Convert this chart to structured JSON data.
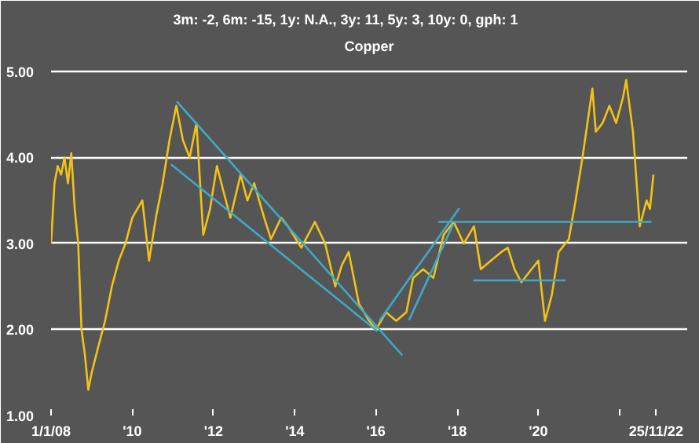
{
  "chart_data": {
    "type": "line",
    "title": "Copper",
    "subtitle": "3m: -2,   6m: -15,   1y: N.A.,   3y: 11,   5y: 3,   10y: 0,   gph: 1",
    "xlim": [
      "2008-01-01",
      "2023-09-01"
    ],
    "ylim": [
      1.0,
      5.2
    ],
    "xticks": [
      {
        "value": "2008-01-01",
        "label": "1/1/08"
      },
      {
        "value": "2010-01-01",
        "label": "'10"
      },
      {
        "value": "2012-01-01",
        "label": "'12"
      },
      {
        "value": "2014-01-01",
        "label": "'14"
      },
      {
        "value": "2016-01-01",
        "label": "'16"
      },
      {
        "value": "2018-01-01",
        "label": "'18"
      },
      {
        "value": "2020-01-01",
        "label": "'20"
      },
      {
        "value": "2022-01-01",
        "label": null
      },
      {
        "value": "2022-11-25",
        "label": "25/11/22"
      }
    ],
    "yticks": [
      {
        "value": 1,
        "label": "1.00"
      },
      {
        "value": 2,
        "label": "2.00"
      },
      {
        "value": 3,
        "label": "3.00"
      },
      {
        "value": 4,
        "label": "4.00"
      },
      {
        "value": 5,
        "label": "5.00"
      }
    ],
    "grid": "y",
    "series": [
      {
        "color": "#f2c316",
        "x": [
          "2008-01",
          "2008-02",
          "2008-03",
          "2008-04",
          "2008-05",
          "2008-06",
          "2008-07",
          "2008-08",
          "2008-09",
          "2008-10",
          "2008-11",
          "2008-12",
          "2009-01",
          "2009-03",
          "2009-05",
          "2009-07",
          "2009-09",
          "2009-11",
          "2010-01",
          "2010-04",
          "2010-06",
          "2010-08",
          "2010-10",
          "2010-12",
          "2011-02",
          "2011-04",
          "2011-06",
          "2011-08",
          "2011-10",
          "2011-12",
          "2012-02",
          "2012-04",
          "2012-06",
          "2012-09",
          "2012-11",
          "2013-01",
          "2013-04",
          "2013-06",
          "2013-09",
          "2013-11",
          "2014-03",
          "2014-05",
          "2014-07",
          "2014-10",
          "2015-01",
          "2015-03",
          "2015-05",
          "2015-08",
          "2015-11",
          "2016-01",
          "2016-04",
          "2016-07",
          "2016-10",
          "2016-12",
          "2017-03",
          "2017-06",
          "2017-09",
          "2017-12",
          "2018-03",
          "2018-06",
          "2018-08",
          "2018-11",
          "2019-02",
          "2019-04",
          "2019-06",
          "2019-08",
          "2019-11",
          "2020-01",
          "2020-03",
          "2020-05",
          "2020-07",
          "2020-10",
          "2020-12",
          "2021-02",
          "2021-05",
          "2021-06",
          "2021-08",
          "2021-10",
          "2021-12",
          "2022-02",
          "2022-03",
          "2022-05",
          "2022-07",
          "2022-09",
          "2022-10",
          "2022-11"
        ],
        "values": [
          3.0,
          3.7,
          3.9,
          3.8,
          4.0,
          3.7,
          4.05,
          3.4,
          3.0,
          2.0,
          1.7,
          1.3,
          1.5,
          1.8,
          2.1,
          2.5,
          2.8,
          3.0,
          3.3,
          3.5,
          2.8,
          3.3,
          3.7,
          4.2,
          4.6,
          4.2,
          4.0,
          4.4,
          3.1,
          3.4,
          3.9,
          3.6,
          3.3,
          3.8,
          3.5,
          3.7,
          3.3,
          3.05,
          3.3,
          3.2,
          2.95,
          3.1,
          3.25,
          3.0,
          2.5,
          2.75,
          2.9,
          2.3,
          2.1,
          2.0,
          2.2,
          2.1,
          2.2,
          2.6,
          2.7,
          2.6,
          3.1,
          3.25,
          3.0,
          3.2,
          2.7,
          2.8,
          2.9,
          2.95,
          2.7,
          2.55,
          2.7,
          2.8,
          2.1,
          2.4,
          2.9,
          3.05,
          3.5,
          4.0,
          4.8,
          4.3,
          4.4,
          4.6,
          4.4,
          4.7,
          4.9,
          4.3,
          3.2,
          3.5,
          3.4,
          3.8
        ]
      },
      {
        "color": "#3fa9c9",
        "x": [
          "2011-02-05",
          "2016-08-25"
        ],
        "values": [
          4.65,
          1.7
        ]
      },
      {
        "color": "#3fa9c9",
        "x": [
          "2010-12-15",
          "2016-01-15"
        ],
        "values": [
          3.92,
          1.98
        ]
      },
      {
        "color": "#3fa9c9",
        "x": [
          "2016-02-01",
          "2018-01-20"
        ],
        "values": [
          2.1,
          3.41
        ]
      },
      {
        "color": "#3fa9c9",
        "x": [
          "2016-10-25",
          "2017-11-25"
        ],
        "values": [
          2.11,
          3.22
        ]
      },
      {
        "color": "#3fa9c9",
        "x": [
          "2018-05-25",
          "2020-09-01"
        ],
        "values": [
          2.57,
          2.57
        ]
      },
      {
        "color": "#3fa9c9",
        "x": [
          "2017-07-15",
          "2022-10-15"
        ],
        "values": [
          3.25,
          3.25
        ]
      }
    ]
  }
}
